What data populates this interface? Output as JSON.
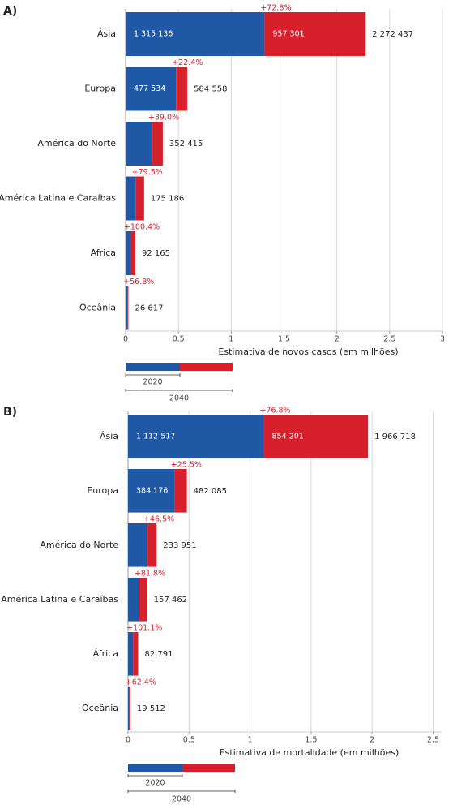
{
  "chart_data": [
    {
      "type": "stacked-bar",
      "panel": "A)",
      "x_label": "Estimativa de novos casos (em milhões)",
      "categories": [
        "Ásia",
        "Europa",
        "América do Norte",
        "América Latina e Caraíbas",
        "África",
        "Oceânia"
      ],
      "series": [
        {
          "name": "2020",
          "color": "#1f59a6",
          "values": [
            1.315136,
            0.477534,
            0.2535,
            0.0976,
            0.046,
            0.017
          ],
          "value_labels": [
            "1 315 136",
            "477 534",
            null,
            null,
            null,
            null
          ]
        },
        {
          "name": "2040",
          "color": "#d7202b",
          "values": [
            0.957301,
            0.107024,
            0.0989,
            0.0776,
            0.0462,
            0.0096
          ],
          "value_labels": [
            "957 301",
            null,
            null,
            null,
            null,
            null
          ]
        }
      ],
      "totals": {
        "values": [
          2.272437,
          0.584558,
          0.352415,
          0.175186,
          0.092165,
          0.026617
        ],
        "value_labels": [
          "2 272 437",
          "584 558",
          "352 415",
          "175 186",
          "92 165",
          "26 617"
        ]
      },
      "growth": {
        "values": [
          72.8,
          22.4,
          39.0,
          79.5,
          100.4,
          56.8
        ],
        "value_labels": [
          "+72.8%",
          "+22.4%",
          "+39.0%",
          "+79.5%",
          "+100.4%",
          "+56.8%"
        ]
      },
      "xlim": [
        0,
        3
      ],
      "xticks": [
        0,
        0.5,
        1,
        1.5,
        2,
        2.5,
        3
      ],
      "grid": true
    },
    {
      "type": "stacked-bar",
      "panel": "B)",
      "x_label": "Estimativa de mortalidade (em milhões)",
      "categories": [
        "Ásia",
        "Europa",
        "América do Norte",
        "América Latina e Caraíbas",
        "África",
        "Oceânia"
      ],
      "series": [
        {
          "name": "2020",
          "color": "#1f59a6",
          "values": [
            1.112517,
            0.384176,
            0.1597,
            0.0866,
            0.0412,
            0.012
          ],
          "value_labels": [
            "1 112 517",
            "384 176",
            null,
            null,
            null,
            null
          ]
        },
        {
          "name": "2040",
          "color": "#d7202b",
          "values": [
            0.854201,
            0.097909,
            0.0743,
            0.0708,
            0.0416,
            0.0075
          ],
          "value_labels": [
            "854 201",
            null,
            null,
            null,
            null,
            null
          ]
        }
      ],
      "totals": {
        "values": [
          1.966718,
          0.482085,
          0.233951,
          0.157462,
          0.082791,
          0.019512
        ],
        "value_labels": [
          "1 966 718",
          "482 085",
          "233 951",
          "157 462",
          "82 791",
          "19 512"
        ]
      },
      "growth": {
        "values": [
          76.8,
          25.5,
          46.5,
          81.8,
          101.1,
          62.4
        ],
        "value_labels": [
          "+76.8%",
          "+25.5%",
          "+46.5%",
          "+81.8%",
          "+101.1%",
          "+62.4%"
        ]
      },
      "xlim": [
        0,
        2.57
      ],
      "xticks": [
        0,
        0.5,
        1,
        1.5,
        2,
        2.5
      ],
      "grid": true
    }
  ]
}
